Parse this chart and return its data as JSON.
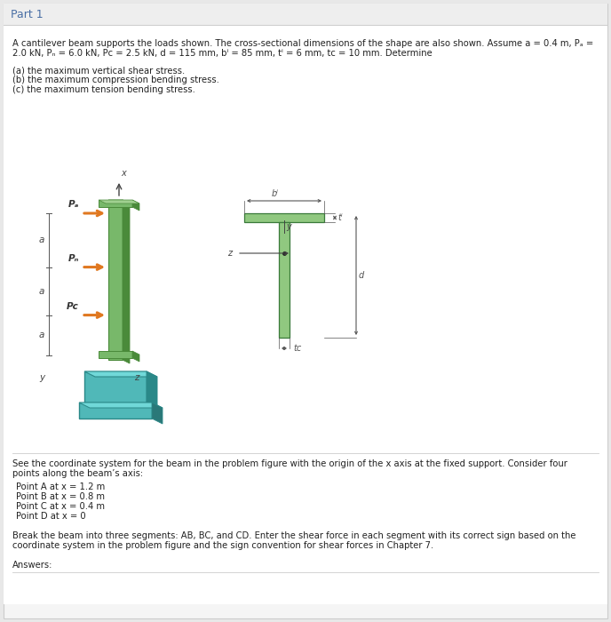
{
  "title": "Part 1",
  "bg_color": "#e8e8e8",
  "panel_bg": "#f5f5f5",
  "content_bg": "#ffffff",
  "title_color": "#4a6fa5",
  "text_color": "#222222",
  "header_line1": "A cantilever beam supports the loads shown. The cross-sectional dimensions of the shape are also shown. Assume a = 0.4 m, Pₐ =",
  "header_line2": "2.0 kN, Pₙ = 6.0 kN, Pᴄ = 2.5 kN, d = 115 mm, bⁱ = 85 mm, tⁱ = 6 mm, tᴄ = 10 mm. Determine",
  "items": [
    "(a) the maximum vertical shear stress.",
    "(b) the maximum compression bending stress.",
    "(c) the maximum tension bending stress."
  ],
  "para1_line1": "See the coordinate system for the beam in the problem figure with the origin of the x axis at the fixed support. Consider four",
  "para1_line2": "points along the beam’s axis:",
  "points": [
    "Point A at x = 1.2 m",
    "Point B at x = 0.8 m",
    "Point C at x = 0.4 m",
    "Point D at x = 0"
  ],
  "para2_line1": "Break the beam into three segments: AB, BC, and CD. Enter the shear force in each segment with its correct sign based on the",
  "para2_line2": "coordinate system in the problem figure and the sign convention for shear forces in Chapter 7.",
  "answers_label": "Answers:",
  "beam_color": "#78b86a",
  "beam_dark": "#4a8a3a",
  "beam_light": "#a0d090",
  "base_color": "#50b8b8",
  "base_dark": "#2a8888",
  "base_light": "#70d8d8",
  "arrow_color": "#e07820",
  "cs_color": "#90c880",
  "cs_edge": "#3a7a3a",
  "dim_color": "#555555",
  "line_color": "#888888"
}
